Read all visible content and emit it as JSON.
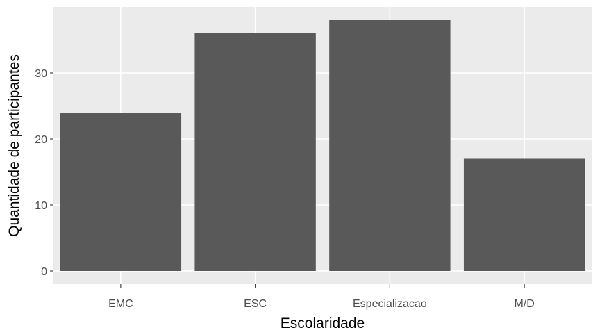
{
  "chart_data": {
    "type": "bar",
    "categories": [
      "EMC",
      "ESC",
      "Especializacao",
      "M/D"
    ],
    "values": [
      24,
      36,
      38,
      17
    ],
    "xlabel": "Escolaridade",
    "ylabel": "Quantidade de participantes",
    "ylim": [
      -2,
      40
    ],
    "yticks": [
      0,
      10,
      20,
      30
    ],
    "ytick_labels": [
      "0",
      "10",
      "20",
      "30"
    ],
    "grid": true,
    "colors": {
      "panel_background": "#ebebeb",
      "grid_major": "#ffffff",
      "bar_fill": "#595959",
      "tick_text": "#4d4d4d",
      "axis_title": "#000000"
    }
  }
}
